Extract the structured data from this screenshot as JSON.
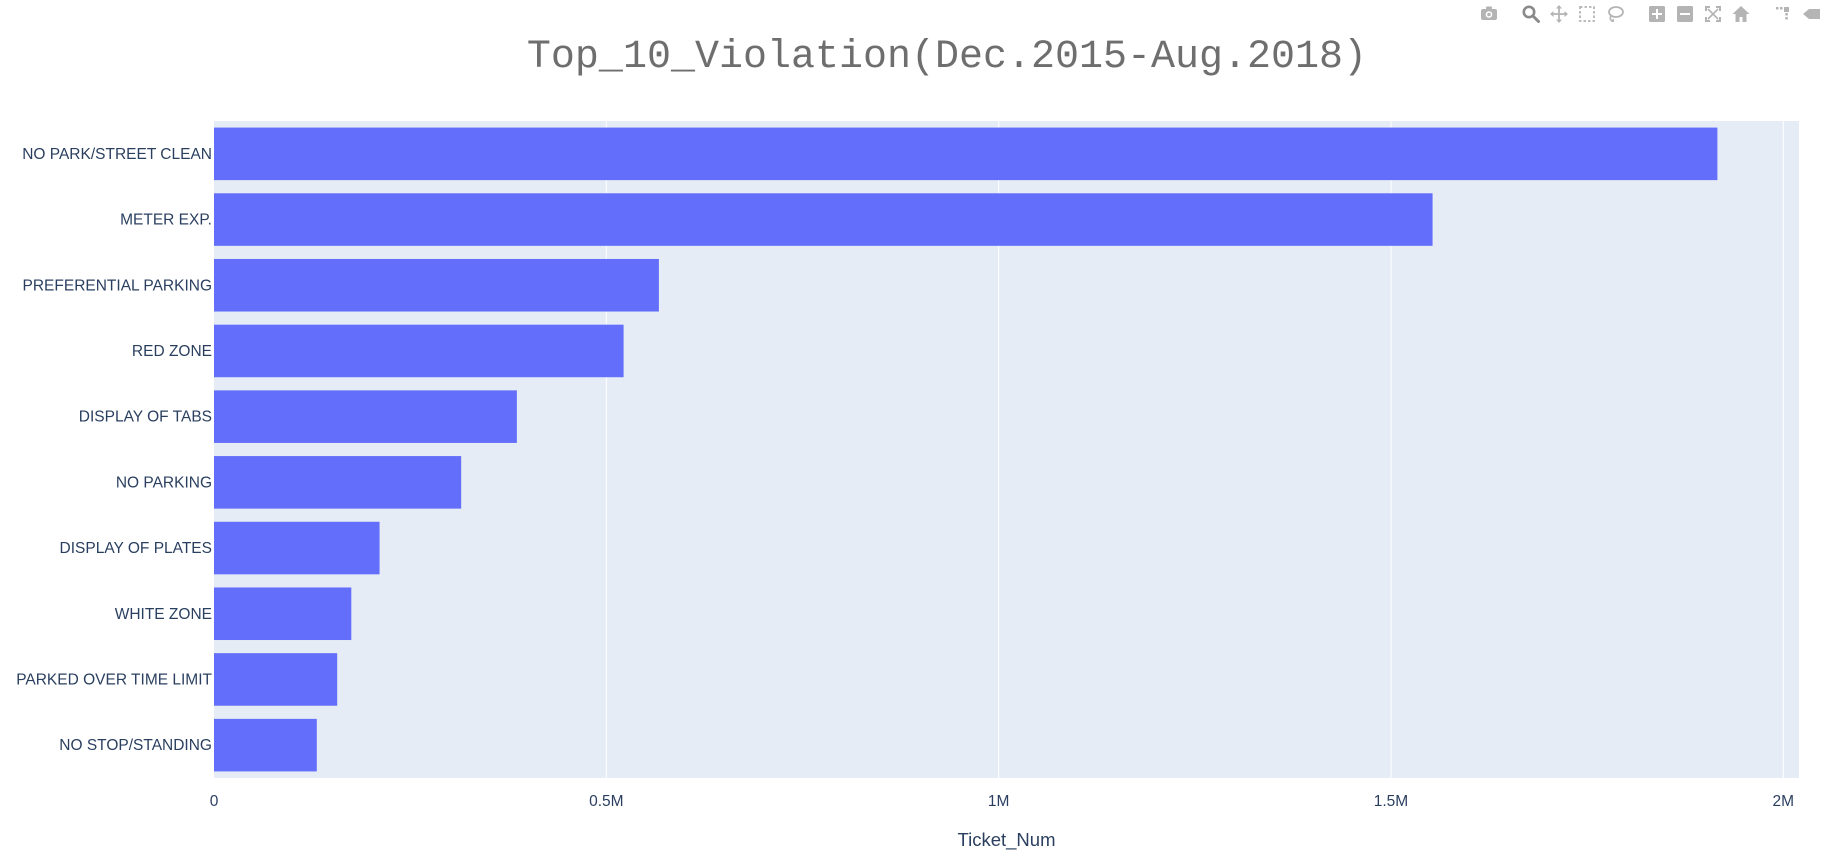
{
  "colors": {
    "bar": "#636efa",
    "plot_bg": "#e5ecf6",
    "grid": "#ffffff",
    "text": "#2a3f5f",
    "title": "#6e6e6e",
    "modebar_icon": "#b4b4b4",
    "modebar_active": "#8a8a8a"
  },
  "chart_data": {
    "type": "bar",
    "orientation": "horizontal",
    "title": "Top_10_Violation(Dec.2015-Aug.2018)",
    "xlabel": "Ticket_Num",
    "ylabel": "",
    "xlim": [
      0,
      2020000
    ],
    "grid": true,
    "xticks": [
      {
        "value": 0,
        "label": "0"
      },
      {
        "value": 500000,
        "label": "0.5M"
      },
      {
        "value": 1000000,
        "label": "1M"
      },
      {
        "value": 1500000,
        "label": "1.5M"
      },
      {
        "value": 2000000,
        "label": "2M"
      }
    ],
    "categories": [
      "NO PARK/STREET CLEAN",
      "METER EXP.",
      "PREFERENTIAL PARKING",
      "RED ZONE",
      "DISPLAY OF TABS",
      "NO PARKING",
      "DISPLAY OF PLATES",
      "WHITE ZONE",
      "PARKED OVER TIME LIMIT",
      "NO STOP/STANDING"
    ],
    "values": [
      1916000,
      1553000,
      567000,
      522000,
      386000,
      315000,
      211000,
      175000,
      157000,
      131000
    ]
  },
  "modebar": {
    "groups": [
      [
        "camera-icon"
      ],
      [
        "zoom-icon",
        "pan-icon",
        "box-select-icon",
        "lasso-select-icon"
      ],
      [
        "zoom-in-icon",
        "zoom-out-icon",
        "autoscale-icon",
        "reset-axes-icon"
      ],
      [
        "spike-lines-icon",
        "hover-closest-icon"
      ]
    ],
    "active": "zoom-icon"
  }
}
